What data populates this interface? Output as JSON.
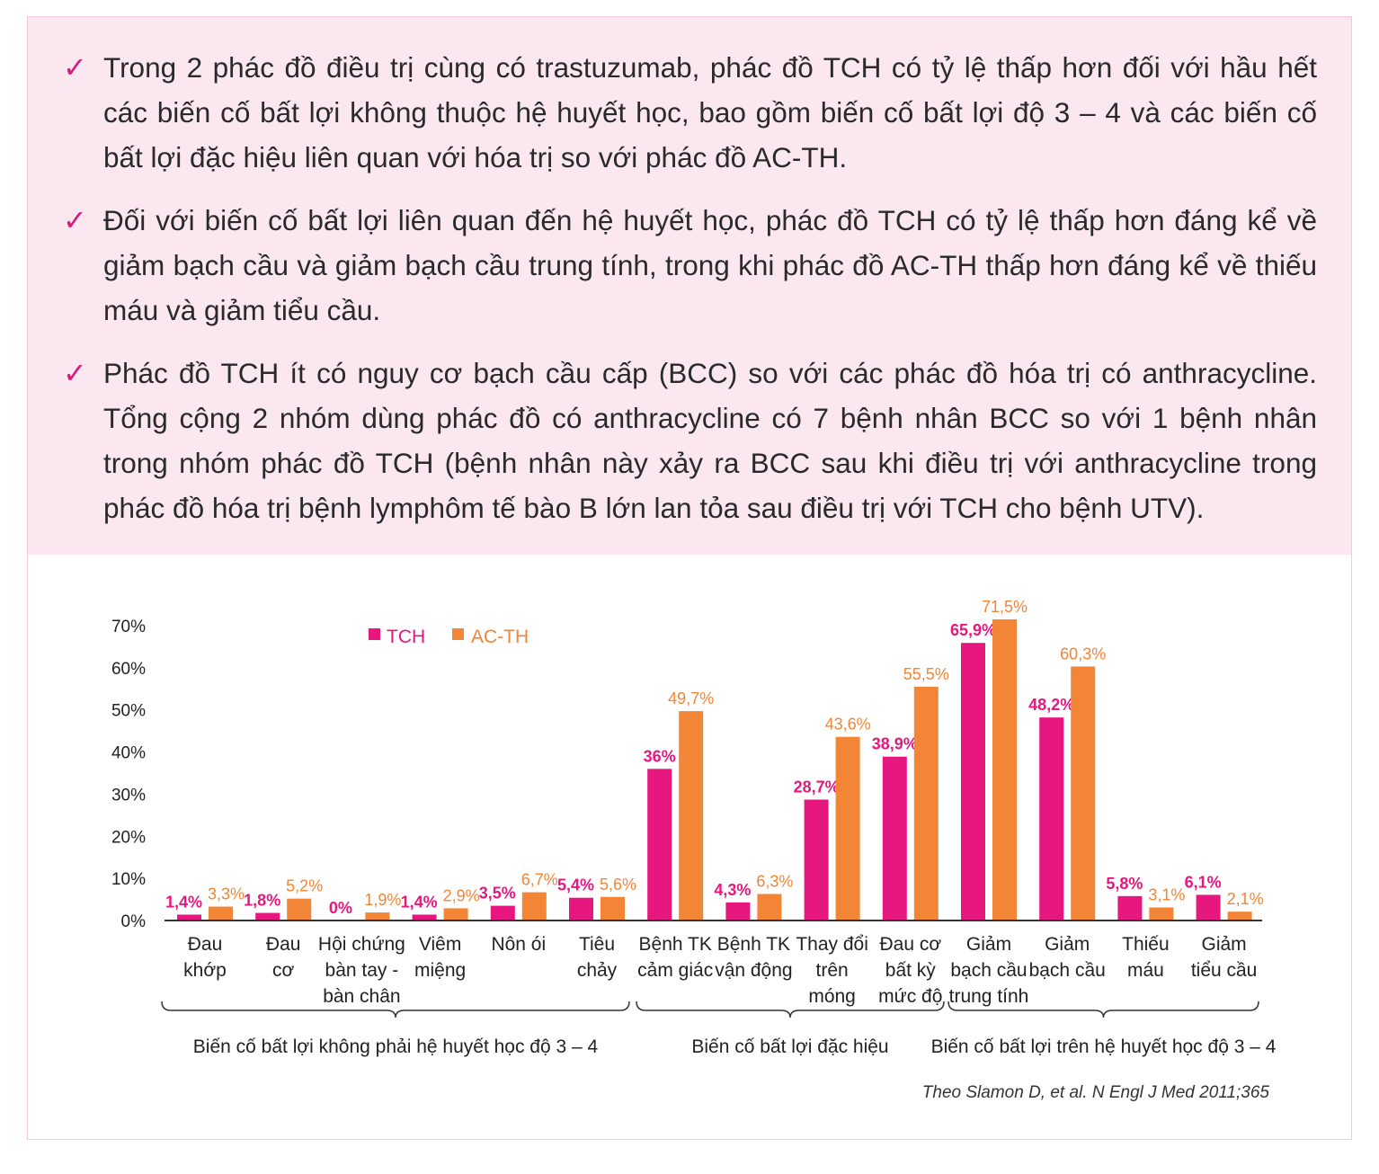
{
  "bullets": [
    {
      "icon": "check-icon",
      "text": "Trong 2 phác đồ điều trị cùng có trastuzumab, phác đồ TCH có tỷ lệ thấp hơn đối với hầu hết các biến cố bất lợi không thuộc hệ huyết học, bao gồm biến cố bất lợi độ 3 – 4 và các biến cố bất lợi đặc hiệu liên quan với hóa trị so với phác đồ AC-TH."
    },
    {
      "icon": "check-icon",
      "text": "Đối với biến cố bất lợi liên quan đến hệ huyết học, phác đồ TCH có tỷ lệ thấp hơn đáng kể về giảm bạch cầu và giảm bạch cầu trung tính, trong khi phác đồ AC-TH thấp hơn đáng kể về thiếu máu và giảm tiểu cầu."
    },
    {
      "icon": "check-icon",
      "text": "Phác đồ TCH ít có nguy cơ bạch cầu cấp (BCC) so với các phác đồ hóa trị có anthracycline. Tổng cộng 2 nhóm dùng phác đồ có anthracycline có 7 bệnh nhân BCC so với 1 bệnh nhân trong nhóm phác đồ TCH (bệnh nhân này xảy ra BCC sau khi điều trị với anthracycline trong phác đồ hóa trị bệnh lymphôm tế bào B lớn lan tỏa sau điều trị với TCH cho bệnh UTV)."
    }
  ],
  "colors": {
    "tch": "#e6177e",
    "acth": "#f28536",
    "box": "#fbe7ef",
    "check": "#d81b7a"
  },
  "chart_data": {
    "type": "bar",
    "ylim": [
      0,
      70
    ],
    "yticks": [
      "0%",
      "10%",
      "20%",
      "30%",
      "40%",
      "50%",
      "60%",
      "70%"
    ],
    "legend_position": "top-left",
    "categories": [
      [
        "Đau",
        "khớp"
      ],
      [
        "Đau",
        "cơ"
      ],
      [
        "Hội chứng",
        "bàn tay -",
        "bàn chân"
      ],
      [
        "Viêm",
        "miệng"
      ],
      [
        "Nôn ói"
      ],
      [
        "Tiêu",
        "chảy"
      ],
      [
        "Bệnh TK",
        "cảm giác"
      ],
      [
        "Bệnh TK",
        "vận động"
      ],
      [
        "Thay đổi",
        "trên",
        "móng"
      ],
      [
        "Đau cơ",
        "bất kỳ",
        "mức độ"
      ],
      [
        "Giảm",
        "bạch cầu",
        "trung tính"
      ],
      [
        "Giảm",
        "bạch cầu"
      ],
      [
        "Thiếu",
        "máu"
      ],
      [
        "Giảm",
        "tiểu cầu"
      ]
    ],
    "series": [
      {
        "name": "TCH",
        "values": [
          1.4,
          1.8,
          0,
          1.4,
          3.5,
          5.4,
          36,
          4.3,
          28.7,
          38.9,
          65.9,
          48.2,
          5.8,
          6.1
        ],
        "labels": [
          "1,4%",
          "1,8%",
          "0%",
          "1,4%",
          "3,5%",
          "5,4%",
          "36%",
          "4,3%",
          "28,7%",
          "38,9%",
          "65,9%",
          "48,2%",
          "5,8%",
          "6,1%"
        ]
      },
      {
        "name": "AC-TH",
        "values": [
          3.3,
          5.2,
          1.9,
          2.9,
          6.7,
          5.6,
          49.7,
          6.3,
          43.6,
          55.5,
          71.5,
          60.3,
          3.1,
          2.1
        ],
        "labels": [
          "3,3%",
          "5,2%",
          "1,9%",
          "2,9%",
          "6,7%",
          "5,6%",
          "49,7%",
          "6,3%",
          "43,6%",
          "55,5%",
          "71,5%",
          "60,3%",
          "3,1%",
          "2,1%"
        ]
      }
    ],
    "groups": [
      {
        "label": "Biến cố bất lợi không phải hệ huyết học độ 3 – 4",
        "from": 0,
        "to": 5
      },
      {
        "label": "Biến cố bất lợi đặc hiệu",
        "from": 6,
        "to": 9
      },
      {
        "label": "Biến cố bất lợi trên hệ huyết học độ 3 – 4",
        "from": 10,
        "to": 13
      }
    ]
  },
  "source": "Theo Slamon D, et al. N Engl J Med 2011;365"
}
